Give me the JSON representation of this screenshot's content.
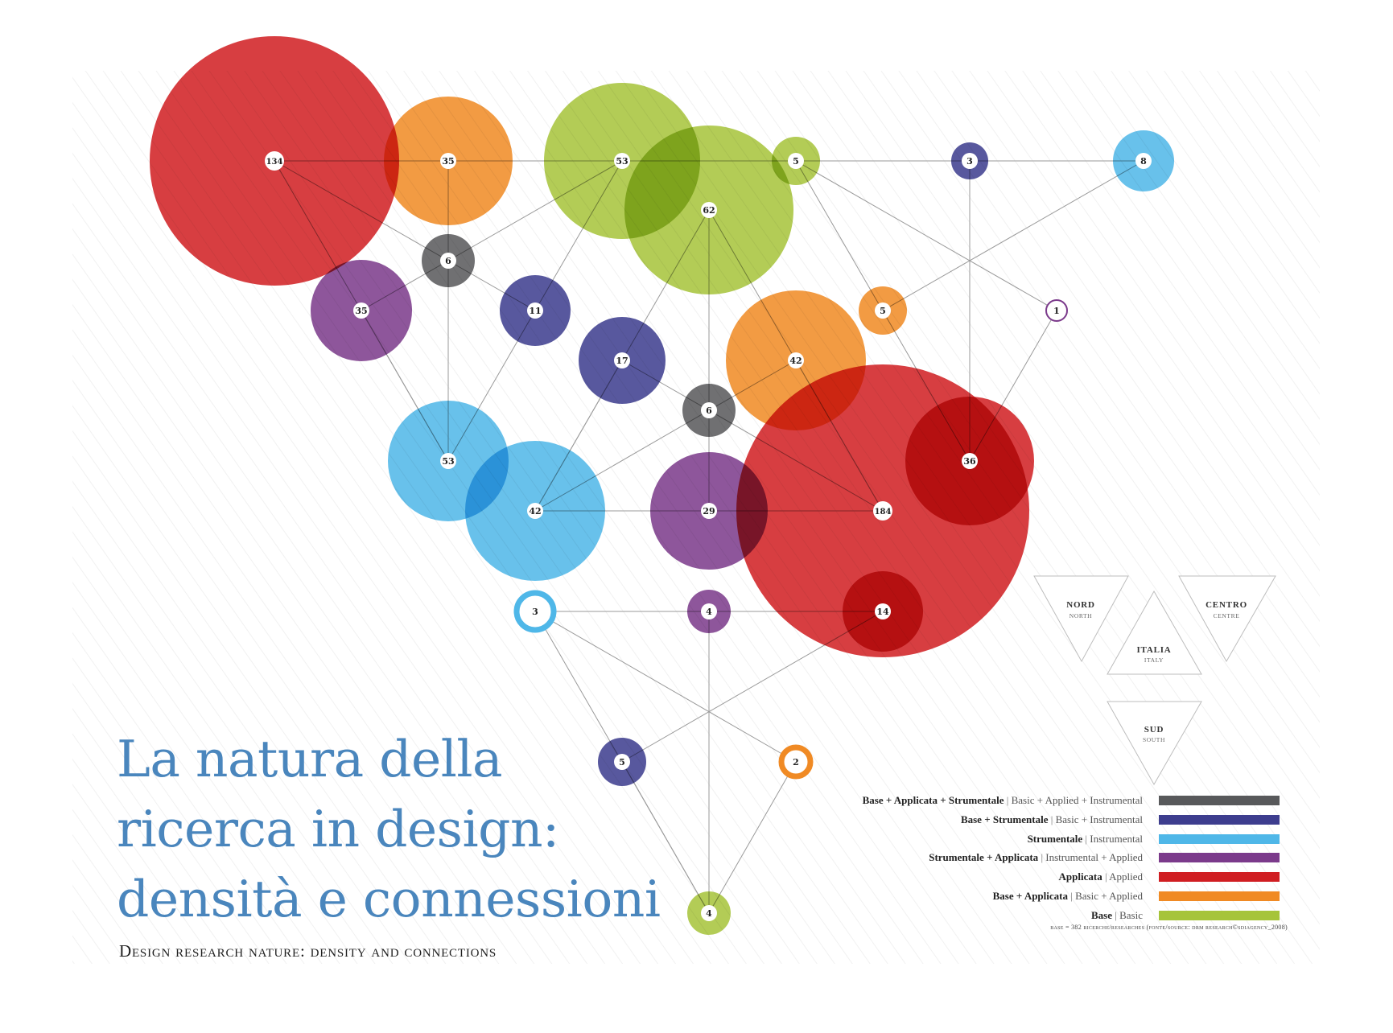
{
  "title": {
    "line1": "La natura della",
    "line2": "ricerca in design:",
    "line3": "densità e connessioni"
  },
  "subtitle": "Design research nature: density and connections",
  "colors": {
    "basic_applied_instrumental": "#58595b",
    "basic_instrumental": "#3d3d8e",
    "instrumental": "#4fb7e8",
    "instrumental_applied": "#7b3a8b",
    "applied": "#d01e22",
    "basic_applied": "#f08a24",
    "basic": "#a6c43a",
    "edge": "#9a9a9a",
    "background_stripe": "#f2f2f2"
  },
  "regions": {
    "nord": {
      "it": "NORD",
      "en": "NORTH"
    },
    "centro": {
      "it": "CENTRO",
      "en": "CENTRE"
    },
    "italia": {
      "it": "ITALIA",
      "en": "ITALY"
    },
    "sud": {
      "it": "SUD",
      "en": "SOUTH"
    }
  },
  "legend": [
    {
      "it": "Base + Applicata + Strumentale",
      "en": "Basic + Applied + Instrumental",
      "color": "#58595b"
    },
    {
      "it": "Base + Strumentale",
      "en": "Basic + Instrumental",
      "color": "#3d3d8e"
    },
    {
      "it": "Strumentale",
      "en": "Instrumental",
      "color": "#4fb7e8"
    },
    {
      "it": "Strumentale + Applicata",
      "en": "Instrumental + Applied",
      "color": "#7b3a8b"
    },
    {
      "it": "Applicata",
      "en": "Applied",
      "color": "#d01e22"
    },
    {
      "it": "Base + Applicata",
      "en": "Basic + Applied",
      "color": "#f08a24"
    },
    {
      "it": "Base",
      "en": "Basic",
      "color": "#a6c43a"
    }
  ],
  "footnote": "base = 382 ricerche/researches (fonte/source: drm research©sdiagency_2008)",
  "nodes": [
    {
      "id": "n134",
      "value": "134",
      "category": "applied"
    },
    {
      "id": "n35a",
      "value": "35",
      "category": "basic_applied"
    },
    {
      "id": "n53a",
      "value": "53",
      "category": "basic"
    },
    {
      "id": "n5a",
      "value": "5",
      "category": "basic"
    },
    {
      "id": "n3a",
      "value": "3",
      "category": "basic_instrumental"
    },
    {
      "id": "n8",
      "value": "8",
      "category": "instrumental"
    },
    {
      "id": "n62",
      "value": "62",
      "category": "basic"
    },
    {
      "id": "n6a",
      "value": "6",
      "category": "basic_applied_instrumental"
    },
    {
      "id": "n35b",
      "value": "35",
      "category": "instrumental_applied"
    },
    {
      "id": "n11",
      "value": "11",
      "category": "basic_instrumental"
    },
    {
      "id": "n5b",
      "value": "5",
      "category": "basic_applied"
    },
    {
      "id": "n1",
      "value": "1",
      "category": "instrumental_applied"
    },
    {
      "id": "n17",
      "value": "17",
      "category": "basic_instrumental"
    },
    {
      "id": "n42a",
      "value": "42",
      "category": "basic_applied"
    },
    {
      "id": "n6b",
      "value": "6",
      "category": "basic_applied_instrumental"
    },
    {
      "id": "n53b",
      "value": "53",
      "category": "instrumental"
    },
    {
      "id": "n36",
      "value": "36",
      "category": "applied"
    },
    {
      "id": "n42b",
      "value": "42",
      "category": "instrumental"
    },
    {
      "id": "n29",
      "value": "29",
      "category": "instrumental_applied"
    },
    {
      "id": "n184",
      "value": "184",
      "category": "applied"
    },
    {
      "id": "n3b",
      "value": "3",
      "category": "instrumental"
    },
    {
      "id": "n4a",
      "value": "4",
      "category": "instrumental_applied"
    },
    {
      "id": "n14",
      "value": "14",
      "category": "applied"
    },
    {
      "id": "n5c",
      "value": "5",
      "category": "basic_instrumental"
    },
    {
      "id": "n2",
      "value": "2",
      "category": "basic_applied"
    },
    {
      "id": "n4b",
      "value": "4",
      "category": "basic"
    }
  ],
  "edges": [
    [
      "n134",
      "n35a"
    ],
    [
      "n35a",
      "n53a"
    ],
    [
      "n53a",
      "n5a"
    ],
    [
      "n5a",
      "n3a"
    ],
    [
      "n3a",
      "n8"
    ],
    [
      "n134",
      "n6a"
    ],
    [
      "n134",
      "n53b"
    ],
    [
      "n35a",
      "n6a"
    ],
    [
      "n53a",
      "n6a"
    ],
    [
      "n53a",
      "n11"
    ],
    [
      "n6a",
      "n35b"
    ],
    [
      "n6a",
      "n11"
    ],
    [
      "n6a",
      "n53b"
    ],
    [
      "n35b",
      "n53b"
    ],
    [
      "n11",
      "n53b"
    ],
    [
      "n62",
      "n6b"
    ],
    [
      "n62",
      "n42b"
    ],
    [
      "n62",
      "n184"
    ],
    [
      "n5a",
      "n1"
    ],
    [
      "n5a",
      "n36"
    ],
    [
      "n3a",
      "n36"
    ],
    [
      "n8",
      "n5b"
    ],
    [
      "n1",
      "n36"
    ],
    [
      "n17",
      "n6b"
    ],
    [
      "n42a",
      "n6b"
    ],
    [
      "n42a",
      "n184"
    ],
    [
      "n6b",
      "n184"
    ],
    [
      "n6b",
      "n42b"
    ],
    [
      "n6b",
      "n29"
    ],
    [
      "n42b",
      "n29"
    ],
    [
      "n29",
      "n184"
    ],
    [
      "n17",
      "n42b"
    ],
    [
      "n3b",
      "n4a"
    ],
    [
      "n4a",
      "n14"
    ],
    [
      "n3b",
      "n2"
    ],
    [
      "n3b",
      "n4b"
    ],
    [
      "n4a",
      "n4b"
    ],
    [
      "n14",
      "n5c"
    ],
    [
      "n5c",
      "n4b"
    ],
    [
      "n2",
      "n4b"
    ]
  ]
}
